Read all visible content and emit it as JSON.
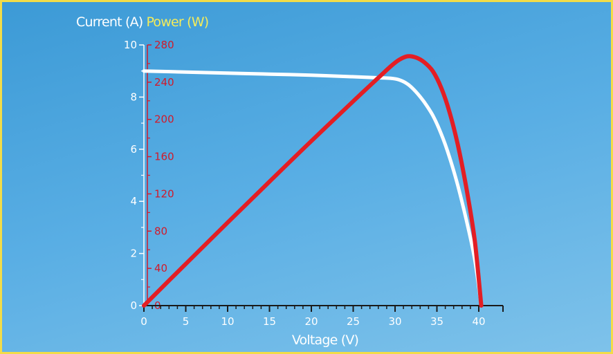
{
  "chart_data": {
    "type": "line",
    "title": "",
    "xlabel": "Voltage (V)",
    "ylabel_left": "Current (A)",
    "ylabel_right": "Power (W)",
    "xlim": [
      0,
      40
    ],
    "ylim_left": [
      0,
      10
    ],
    "ylim_right": [
      0,
      280
    ],
    "x_ticks": [
      0,
      5,
      10,
      15,
      20,
      25,
      30,
      35,
      40
    ],
    "y_left_ticks": [
      0,
      2,
      4,
      6,
      8,
      10
    ],
    "y_right_ticks": [
      0,
      40,
      80,
      120,
      160,
      200,
      240,
      280
    ],
    "series": [
      {
        "name": "Current (A)",
        "axis": "left",
        "color": "#ffffff",
        "x": [
          0,
          5,
          10,
          15,
          20,
          25,
          28,
          29.5,
          30.5,
          31.5,
          32.5,
          33.5,
          34.5,
          35.5,
          36.5,
          37.5,
          38.5,
          39.5,
          40.3
        ],
        "y": [
          9.0,
          8.96,
          8.92,
          8.88,
          8.84,
          8.78,
          8.74,
          8.72,
          8.66,
          8.5,
          8.2,
          7.8,
          7.3,
          6.6,
          5.7,
          4.6,
          3.3,
          1.8,
          0
        ]
      },
      {
        "name": "Power (W)",
        "axis": "right",
        "color": "#e31e24",
        "x": [
          0,
          5,
          10,
          15,
          20,
          25,
          28,
          29.5,
          30.5,
          31.5,
          32.5,
          33.5,
          34.5,
          35.5,
          36.5,
          37.5,
          38.5,
          39.5,
          40.3
        ],
        "y": [
          0,
          44.8,
          89.2,
          133.2,
          176.8,
          219.5,
          244.7,
          257.2,
          264.1,
          267.8,
          266.5,
          261.3,
          251.9,
          234.3,
          208.1,
          172.5,
          127.1,
          71.1,
          0
        ]
      }
    ],
    "grid": false,
    "legend": "top-left"
  }
}
